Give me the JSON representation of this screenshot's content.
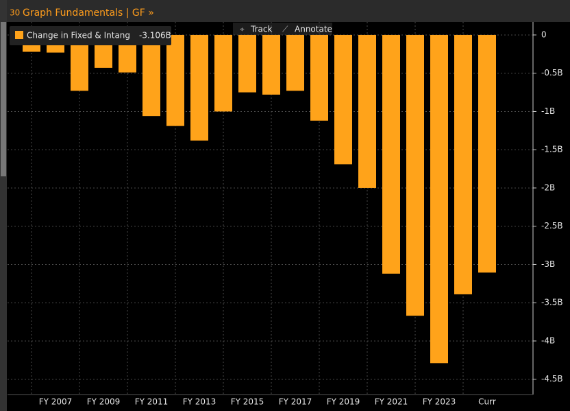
{
  "ui": {
    "badge": "30",
    "title": "Graph Fundamentals | GF »",
    "track": "Track",
    "annotate": "Annotate"
  },
  "chart_data": {
    "type": "bar",
    "categories": [
      null,
      "FY 2007",
      null,
      "FY 2009",
      null,
      "FY 2011",
      null,
      "FY 2013",
      null,
      "FY 2015",
      null,
      "FY 2017",
      null,
      "FY 2019",
      null,
      "FY 2021",
      null,
      "FY 2023",
      null,
      "Curr"
    ],
    "series": [
      {
        "name": "Change in Fixed & Intang",
        "color": "#ffa31a",
        "values": [
          -0.22,
          -0.23,
          -0.73,
          -0.43,
          -0.49,
          -1.06,
          -1.19,
          -1.38,
          -1.0,
          -0.75,
          -0.78,
          -0.73,
          -1.12,
          -1.69,
          -2.0,
          -3.12,
          -3.67,
          -4.29,
          -3.39,
          -3.106
        ]
      }
    ],
    "last_value_label": "-3.106B",
    "ylim": [
      -4.7,
      0.17
    ],
    "yticks": [
      0,
      {
        "value": -0.5,
        "label": "-0.5B"
      },
      {
        "value": -1,
        "label": "-1B"
      },
      {
        "value": -1.5,
        "label": "-1.5B"
      },
      {
        "value": -2,
        "label": "-2B"
      },
      {
        "value": -2.5,
        "label": "-2.5B"
      },
      {
        "value": -3,
        "label": "-3B"
      },
      {
        "value": -3.5,
        "label": "-3.5B"
      },
      {
        "value": -4,
        "label": "-4B"
      },
      {
        "value": -4.5,
        "label": "-4.5B"
      }
    ],
    "grid": true
  }
}
